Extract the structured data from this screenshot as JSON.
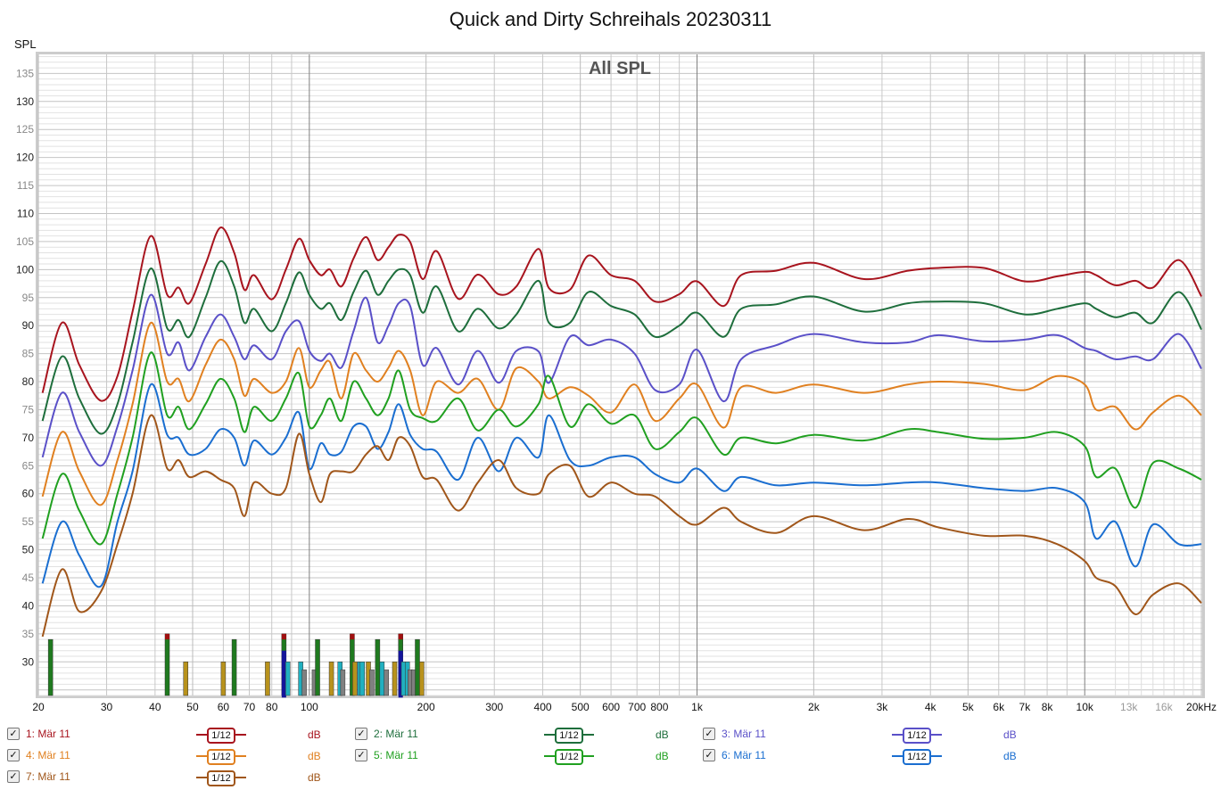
{
  "chart_data": {
    "type": "line",
    "title": "Quick and Dirty Schreihals 20230311",
    "subtitle": "All SPL",
    "ylabel": "SPL",
    "xlabel": "",
    "x_scale": "log",
    "xlim": [
      20,
      20100
    ],
    "ylim": [
      24,
      138.4
    ],
    "grid": true,
    "x_ticks": [
      {
        "v": 20,
        "label": "20"
      },
      {
        "v": 30,
        "label": "30"
      },
      {
        "v": 40,
        "label": "40"
      },
      {
        "v": 50,
        "label": "50"
      },
      {
        "v": 60,
        "label": "60"
      },
      {
        "v": 70,
        "label": "70"
      },
      {
        "v": 80,
        "label": "80"
      },
      {
        "v": 100,
        "label": "100"
      },
      {
        "v": 200,
        "label": "200"
      },
      {
        "v": 300,
        "label": "300"
      },
      {
        "v": 400,
        "label": "400"
      },
      {
        "v": 500,
        "label": "500"
      },
      {
        "v": 600,
        "label": "600"
      },
      {
        "v": 700,
        "label": "700"
      },
      {
        "v": 800,
        "label": "800"
      },
      {
        "v": 1000,
        "label": "1k"
      },
      {
        "v": 2000,
        "label": "2k"
      },
      {
        "v": 3000,
        "label": "3k"
      },
      {
        "v": 4000,
        "label": "4k"
      },
      {
        "v": 5000,
        "label": "5k"
      },
      {
        "v": 6000,
        "label": "6k"
      },
      {
        "v": 7000,
        "label": "7k"
      },
      {
        "v": 8000,
        "label": "8k"
      },
      {
        "v": 10000,
        "label": "10k"
      },
      {
        "v": 13000,
        "label": "13k",
        "muted": true
      },
      {
        "v": 16000,
        "label": "16k",
        "muted": true
      },
      {
        "v": 20000,
        "label": "20kHz"
      }
    ],
    "y_ticks": [
      30,
      35,
      40,
      45,
      50,
      55,
      60,
      65,
      70,
      75,
      80,
      85,
      90,
      95,
      100,
      105,
      110,
      115,
      120,
      125,
      130,
      135
    ],
    "x": [
      20.5,
      23,
      25.5,
      29,
      32,
      35,
      39,
      43,
      46,
      49,
      54,
      59,
      64,
      68,
      72,
      80,
      87,
      94,
      100,
      107,
      113,
      121,
      130,
      140,
      150,
      160,
      170,
      182,
      196,
      213,
      242,
      272,
      308,
      342,
      390,
      415,
      470,
      525,
      600,
      690,
      780,
      900,
      1000,
      1170,
      1300,
      1600,
      2000,
      2700,
      3500,
      4200,
      5500,
      7000,
      8500,
      10000,
      10700,
      12000,
      13500,
      15000,
      17500,
      20000
    ],
    "series": [
      {
        "name": "1: Mär 11",
        "color": "#a8141e",
        "values": [
          78,
          90.5,
          83,
          76.6,
          81,
          92.5,
          106,
          95.5,
          96.8,
          94,
          101,
          107.5,
          103,
          96.4,
          99,
          94.7,
          100,
          105.5,
          101.7,
          99,
          100,
          97,
          102,
          105.8,
          101.7,
          104,
          106.2,
          104.9,
          98.3,
          103.3,
          94.8,
          99.1,
          95.6,
          97,
          103.7,
          96.7,
          96.4,
          102.5,
          99,
          98,
          94.3,
          95.6,
          97.9,
          93.5,
          99,
          99.8,
          101.2,
          98.3,
          99.8,
          100.3,
          100.3,
          97.9,
          98.8,
          99.6,
          99,
          97.2,
          98,
          96.8,
          101.7,
          95.2
        ]
      },
      {
        "name": "2: Mär 11",
        "color": "#1e6e3c",
        "values": [
          73,
          84.5,
          77,
          70.7,
          76,
          87,
          100.2,
          89.5,
          91,
          88,
          95,
          101.5,
          97,
          90.5,
          93,
          89,
          94,
          99.5,
          95.5,
          93,
          94,
          91,
          96,
          99.8,
          95.5,
          98,
          100,
          99,
          92.3,
          97,
          89,
          93,
          89.5,
          92,
          98,
          90.5,
          90.5,
          96,
          93.5,
          92,
          88,
          90,
          92.3,
          88,
          93,
          93.8,
          95.2,
          92.5,
          94,
          94.3,
          94,
          92,
          93,
          94,
          93,
          91.5,
          92.3,
          90.5,
          96,
          89.3
        ]
      },
      {
        "name": "3: Mär 11",
        "color": "#5a50c8",
        "values": [
          66.5,
          78,
          71,
          65,
          72,
          82,
          95.5,
          85,
          87,
          82,
          88,
          92,
          88,
          84,
          86.5,
          84,
          89,
          90.8,
          85.5,
          83.7,
          85,
          82.5,
          89,
          95,
          87,
          90,
          94,
          93.5,
          83,
          86,
          79.5,
          85.5,
          79.8,
          85.5,
          85.4,
          79.8,
          88,
          86.5,
          87.5,
          85,
          78.5,
          79.5,
          85.7,
          76.5,
          84,
          86.5,
          88.5,
          87,
          87,
          88.3,
          87.2,
          87.5,
          88.3,
          86,
          85.5,
          84,
          84.5,
          84,
          88.5,
          82.3
        ]
      },
      {
        "name": "4: Mär 11",
        "color": "#e08020",
        "values": [
          59.5,
          71,
          64,
          58,
          66,
          76,
          90.5,
          80,
          80.5,
          76.5,
          83,
          87.5,
          84,
          77.5,
          80.5,
          78,
          80,
          86,
          79,
          82,
          83.5,
          77,
          85,
          82,
          80,
          82.5,
          85.5,
          82,
          74,
          80,
          78,
          80.5,
          75,
          82.4,
          80,
          77,
          79,
          77.5,
          74.5,
          79.5,
          73,
          77,
          79.5,
          71.8,
          79,
          78,
          79.5,
          78,
          79.5,
          80,
          79.6,
          78.5,
          81,
          79.5,
          75,
          75.5,
          71.5,
          74.5,
          77.5,
          74
        ]
      },
      {
        "name": "5: Mär 11",
        "color": "#20a020",
        "values": [
          52,
          63.5,
          57,
          51,
          60,
          70,
          85.2,
          74,
          75.5,
          71.5,
          76,
          80.5,
          77,
          71,
          75.5,
          73,
          77,
          81.5,
          72,
          74,
          77,
          73,
          80,
          77,
          74,
          77,
          82,
          75,
          73.5,
          73,
          77,
          71.3,
          75,
          72,
          76,
          81,
          72,
          76,
          72.5,
          74,
          68,
          71,
          73.5,
          67,
          70,
          69,
          70.5,
          69.5,
          71.5,
          71,
          69.8,
          70,
          71,
          68.5,
          63,
          64.5,
          57.5,
          65.5,
          64.5,
          62.5
        ]
      },
      {
        "name": "6: Mär 11",
        "color": "#1a6ed0",
        "values": [
          44,
          55,
          49,
          43.5,
          55,
          64,
          79.5,
          70.5,
          70,
          67,
          68,
          71.5,
          70,
          65,
          69.5,
          67,
          70,
          74.5,
          64.5,
          69,
          67,
          67.5,
          72,
          72,
          68,
          71,
          76,
          70.5,
          68,
          67.5,
          62.5,
          70,
          64,
          70,
          66.5,
          74,
          66,
          65,
          66.5,
          66.5,
          63.5,
          62,
          64.5,
          60.5,
          63,
          61.5,
          62,
          61.5,
          62,
          62,
          61,
          60.5,
          61,
          58.5,
          52,
          55,
          47,
          54.5,
          51,
          51
        ]
      },
      {
        "name": "7: Mär 11",
        "color": "#a0561a",
        "values": [
          34.5,
          46.5,
          39,
          42.5,
          51,
          60,
          74,
          64.5,
          66,
          63,
          64,
          62.5,
          61,
          56,
          62,
          60,
          61,
          70.7,
          63.5,
          58.5,
          63.5,
          64,
          64,
          67,
          68.5,
          66,
          70,
          68.5,
          63,
          62.5,
          57,
          62,
          66,
          61,
          60,
          63.5,
          65,
          59.5,
          62,
          60,
          59.5,
          56,
          54.5,
          57.5,
          55,
          53,
          56,
          53.5,
          55.5,
          54,
          52.5,
          52.5,
          51,
          48,
          45,
          43.5,
          38.5,
          42,
          44,
          40.5
        ]
      }
    ],
    "mode_markers": [
      {
        "f": 21.5,
        "level": 34,
        "color": "#1f7a1f"
      },
      {
        "f": 43,
        "level": 35,
        "color": "#1f7a1f",
        "top": "#a01010"
      },
      {
        "f": 48,
        "level": 30,
        "color": "#b8921c"
      },
      {
        "f": 60,
        "level": 30,
        "color": "#b8921c"
      },
      {
        "f": 64,
        "level": 34,
        "color": "#1f7a1f"
      },
      {
        "f": 78,
        "level": 30,
        "color": "#b8921c"
      },
      {
        "f": 86,
        "level": 35,
        "color": "#1f7a1f",
        "top": "#a01010",
        "base": "#14149a"
      },
      {
        "f": 88,
        "level": 30,
        "color": "#20b0c0"
      },
      {
        "f": 95,
        "level": 30,
        "color": "#20b0c0"
      },
      {
        "f": 97,
        "level": 28.6,
        "color": "#808080"
      },
      {
        "f": 103,
        "level": 28.6,
        "color": "#808080"
      },
      {
        "f": 105,
        "level": 34,
        "color": "#1f7a1f"
      },
      {
        "f": 114,
        "level": 30,
        "color": "#b8921c"
      },
      {
        "f": 120,
        "level": 30,
        "color": "#20b0c0"
      },
      {
        "f": 122,
        "level": 28.6,
        "color": "#808080"
      },
      {
        "f": 129,
        "level": 35,
        "color": "#1f7a1f",
        "top": "#a01010"
      },
      {
        "f": 131,
        "level": 30,
        "color": "#b8921c"
      },
      {
        "f": 135,
        "level": 30,
        "color": "#20b0c0"
      },
      {
        "f": 137,
        "level": 30,
        "color": "#20b0c0"
      },
      {
        "f": 142,
        "level": 30,
        "color": "#b8921c"
      },
      {
        "f": 145,
        "level": 28.6,
        "color": "#808080"
      },
      {
        "f": 150,
        "level": 34,
        "color": "#1f7a1f"
      },
      {
        "f": 154,
        "level": 30,
        "color": "#20b0c0"
      },
      {
        "f": 158,
        "level": 28.6,
        "color": "#808080"
      },
      {
        "f": 166,
        "level": 30,
        "color": "#b8921c"
      },
      {
        "f": 172,
        "level": 35,
        "color": "#1f7a1f",
        "top": "#a01010",
        "base": "#14149a"
      },
      {
        "f": 175,
        "level": 30,
        "color": "#20b0c0"
      },
      {
        "f": 179,
        "level": 30,
        "color": "#20b0c0"
      },
      {
        "f": 182,
        "level": 28.6,
        "color": "#808080"
      },
      {
        "f": 186,
        "level": 28.6,
        "color": "#808080"
      },
      {
        "f": 190,
        "level": 34,
        "color": "#1f7a1f"
      },
      {
        "f": 195,
        "level": 30,
        "color": "#b8921c"
      }
    ]
  },
  "legend": [
    {
      "check": "✓",
      "label": "1: Mär 11",
      "smoothing": "1/12",
      "unit": "dB",
      "color": "#a8141e"
    },
    {
      "check": "✓",
      "label": "2: Mär 11",
      "smoothing": "1/12",
      "unit": "dB",
      "color": "#1e6e3c"
    },
    {
      "check": "✓",
      "label": "3: Mär 11",
      "smoothing": "1/12",
      "unit": "dB",
      "color": "#5a50c8"
    },
    {
      "check": "✓",
      "label": "4: Mär 11",
      "smoothing": "1/12",
      "unit": "dB",
      "color": "#e08020"
    },
    {
      "check": "✓",
      "label": "5: Mär 11",
      "smoothing": "1/12",
      "unit": "dB",
      "color": "#20a020"
    },
    {
      "check": "✓",
      "label": "6: Mär 11",
      "smoothing": "1/12",
      "unit": "dB",
      "color": "#1a6ed0"
    },
    {
      "check": "✓",
      "label": "7: Mär 11",
      "smoothing": "1/12",
      "unit": "dB",
      "color": "#a0561a"
    }
  ]
}
